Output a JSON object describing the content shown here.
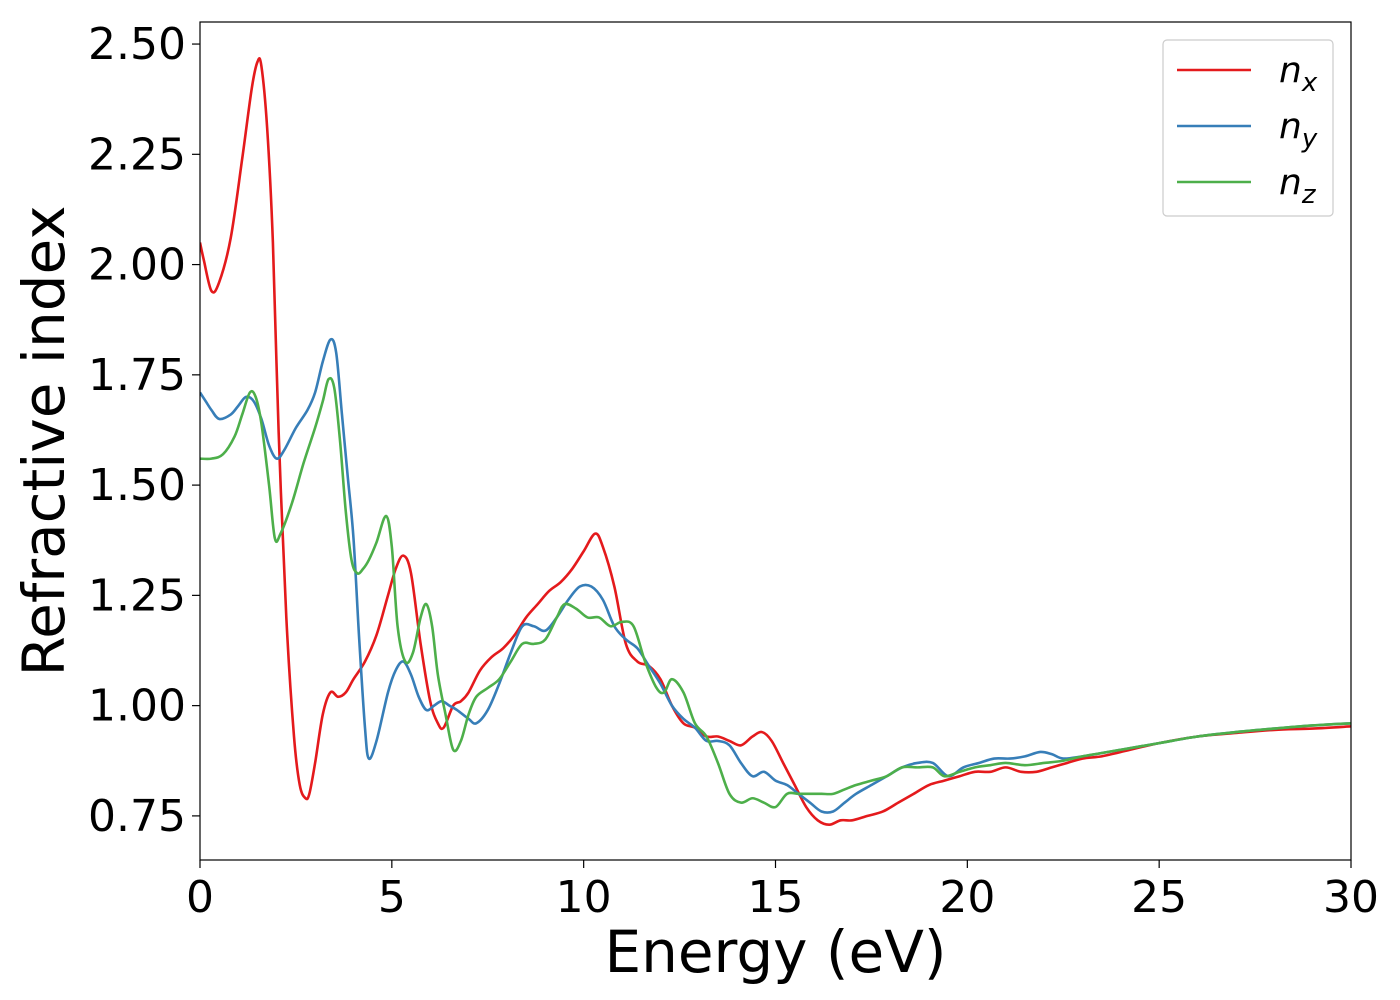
{
  "chart_data": {
    "type": "line",
    "title": "",
    "xlabel": "Energy (eV)",
    "ylabel": "Refractive index",
    "xlim": [
      0,
      30
    ],
    "ylim": [
      0.65,
      2.55
    ],
    "xticks": [
      0,
      5,
      10,
      15,
      20,
      25,
      30
    ],
    "xtick_labels": [
      "0",
      "5",
      "10",
      "15",
      "20",
      "25",
      "30"
    ],
    "yticks": [
      0.75,
      1.0,
      1.25,
      1.5,
      1.75,
      2.0,
      2.25,
      2.5
    ],
    "ytick_labels": [
      "0.75",
      "1.00",
      "1.25",
      "1.50",
      "1.75",
      "2.00",
      "2.25",
      "2.50"
    ],
    "grid": false,
    "legend_position": "top-right",
    "series": [
      {
        "name": "n_x",
        "label_base": "n",
        "label_sub": "x",
        "color": "#e41a1c",
        "x": [
          0,
          0.1,
          0.3,
          0.5,
          0.8,
          1.1,
          1.35,
          1.5,
          1.6,
          1.75,
          1.9,
          2.05,
          2.25,
          2.45,
          2.6,
          2.75,
          2.85,
          3.0,
          3.2,
          3.4,
          3.6,
          3.8,
          4.0,
          4.3,
          4.6,
          4.9,
          5.1,
          5.3,
          5.5,
          5.75,
          6.0,
          6.2,
          6.35,
          6.6,
          6.8,
          7.0,
          7.3,
          7.6,
          7.9,
          8.2,
          8.5,
          8.8,
          9.1,
          9.4,
          9.7,
          10.0,
          10.3,
          10.5,
          10.8,
          11.1,
          11.4,
          11.7,
          12.0,
          12.3,
          12.6,
          12.9,
          13.2,
          13.5,
          13.8,
          14.1,
          14.4,
          14.65,
          14.9,
          15.2,
          15.5,
          15.8,
          16.1,
          16.4,
          16.7,
          17.0,
          17.4,
          17.8,
          18.2,
          18.6,
          19.0,
          19.4,
          19.8,
          20.2,
          20.6,
          21.0,
          21.4,
          21.8,
          22.2,
          22.6,
          23.0,
          23.5,
          24.0,
          25.0,
          26.0,
          27.0,
          28.0,
          29.0,
          30.0
        ],
        "y": [
          2.05,
          2.01,
          1.94,
          1.96,
          2.06,
          2.24,
          2.4,
          2.46,
          2.45,
          2.31,
          2.05,
          1.62,
          1.2,
          0.93,
          0.82,
          0.79,
          0.8,
          0.87,
          0.98,
          1.03,
          1.02,
          1.03,
          1.06,
          1.1,
          1.16,
          1.25,
          1.31,
          1.34,
          1.3,
          1.14,
          1.01,
          0.96,
          0.95,
          1.0,
          1.01,
          1.03,
          1.08,
          1.11,
          1.13,
          1.16,
          1.2,
          1.23,
          1.26,
          1.28,
          1.31,
          1.35,
          1.39,
          1.36,
          1.27,
          1.14,
          1.1,
          1.09,
          1.06,
          1.0,
          0.96,
          0.95,
          0.93,
          0.93,
          0.92,
          0.91,
          0.93,
          0.94,
          0.92,
          0.87,
          0.82,
          0.77,
          0.74,
          0.73,
          0.74,
          0.74,
          0.75,
          0.76,
          0.78,
          0.8,
          0.82,
          0.83,
          0.84,
          0.85,
          0.85,
          0.86,
          0.85,
          0.85,
          0.86,
          0.87,
          0.88,
          0.885,
          0.895,
          0.915,
          0.93,
          0.938,
          0.945,
          0.948,
          0.953
        ]
      },
      {
        "name": "n_y",
        "label_base": "n",
        "label_sub": "y",
        "color": "#377eb8",
        "x": [
          0,
          0.15,
          0.3,
          0.5,
          0.8,
          1.0,
          1.2,
          1.4,
          1.6,
          1.8,
          2.0,
          2.2,
          2.5,
          2.8,
          3.0,
          3.2,
          3.4,
          3.55,
          3.7,
          3.85,
          4.0,
          4.15,
          4.3,
          4.4,
          4.6,
          4.9,
          5.1,
          5.3,
          5.5,
          5.7,
          5.9,
          6.1,
          6.3,
          6.5,
          6.7,
          7.0,
          7.2,
          7.5,
          7.8,
          8.1,
          8.4,
          8.7,
          9.0,
          9.3,
          9.6,
          9.9,
          10.2,
          10.5,
          10.8,
          11.1,
          11.4,
          11.7,
          12.0,
          12.3,
          12.6,
          12.9,
          13.2,
          13.5,
          13.8,
          14.1,
          14.4,
          14.7,
          15.0,
          15.3,
          15.6,
          15.9,
          16.2,
          16.5,
          16.8,
          17.1,
          17.5,
          17.9,
          18.3,
          18.7,
          19.1,
          19.5,
          19.9,
          20.3,
          20.7,
          21.1,
          21.5,
          21.9,
          22.2,
          22.5,
          23.0,
          24.0,
          25.0,
          26.0,
          27.0,
          28.0,
          29.0,
          30.0
        ],
        "y": [
          1.71,
          1.69,
          1.67,
          1.65,
          1.66,
          1.68,
          1.7,
          1.69,
          1.65,
          1.59,
          1.56,
          1.58,
          1.63,
          1.67,
          1.71,
          1.78,
          1.83,
          1.8,
          1.66,
          1.52,
          1.38,
          1.15,
          0.95,
          0.88,
          0.92,
          1.03,
          1.08,
          1.1,
          1.07,
          1.02,
          0.99,
          1.0,
          1.01,
          1.0,
          0.99,
          0.97,
          0.96,
          0.99,
          1.05,
          1.12,
          1.18,
          1.18,
          1.17,
          1.2,
          1.24,
          1.27,
          1.27,
          1.24,
          1.18,
          1.15,
          1.13,
          1.09,
          1.05,
          1.0,
          0.97,
          0.95,
          0.92,
          0.92,
          0.91,
          0.87,
          0.84,
          0.85,
          0.83,
          0.82,
          0.8,
          0.78,
          0.76,
          0.76,
          0.78,
          0.8,
          0.82,
          0.84,
          0.86,
          0.87,
          0.87,
          0.84,
          0.86,
          0.87,
          0.88,
          0.88,
          0.885,
          0.895,
          0.89,
          0.88,
          0.885,
          0.9,
          0.915,
          0.93,
          0.94,
          0.948,
          0.955,
          0.96
        ]
      },
      {
        "name": "n_z",
        "label_base": "n",
        "label_sub": "z",
        "color": "#4daf4a",
        "x": [
          0,
          0.3,
          0.6,
          0.9,
          1.1,
          1.3,
          1.45,
          1.6,
          1.8,
          1.95,
          2.1,
          2.4,
          2.7,
          3.0,
          3.2,
          3.35,
          3.5,
          3.65,
          3.8,
          3.95,
          4.1,
          4.25,
          4.4,
          4.6,
          4.85,
          5.0,
          5.15,
          5.35,
          5.55,
          5.75,
          5.9,
          6.05,
          6.2,
          6.4,
          6.6,
          6.8,
          7.0,
          7.2,
          7.5,
          7.8,
          8.1,
          8.4,
          8.7,
          9.0,
          9.3,
          9.5,
          9.8,
          10.1,
          10.4,
          10.7,
          11.0,
          11.3,
          11.6,
          11.9,
          12.1,
          12.3,
          12.6,
          12.9,
          13.2,
          13.5,
          13.8,
          14.1,
          14.4,
          14.7,
          15.0,
          15.3,
          15.6,
          15.9,
          16.2,
          16.5,
          16.8,
          17.1,
          17.5,
          17.9,
          18.3,
          18.7,
          19.1,
          19.4,
          19.8,
          20.2,
          20.6,
          21.0,
          21.5,
          22.0,
          22.5,
          23.0,
          24.0,
          25.0,
          26.0,
          27.0,
          28.0,
          29.0,
          30.0
        ],
        "y": [
          1.56,
          1.56,
          1.57,
          1.61,
          1.66,
          1.71,
          1.7,
          1.64,
          1.5,
          1.38,
          1.39,
          1.46,
          1.55,
          1.63,
          1.69,
          1.74,
          1.72,
          1.6,
          1.44,
          1.33,
          1.3,
          1.31,
          1.33,
          1.37,
          1.43,
          1.36,
          1.18,
          1.1,
          1.12,
          1.2,
          1.23,
          1.18,
          1.07,
          0.98,
          0.9,
          0.92,
          0.98,
          1.02,
          1.04,
          1.06,
          1.1,
          1.14,
          1.14,
          1.15,
          1.2,
          1.23,
          1.22,
          1.2,
          1.2,
          1.18,
          1.19,
          1.18,
          1.1,
          1.04,
          1.03,
          1.06,
          1.03,
          0.96,
          0.93,
          0.87,
          0.8,
          0.78,
          0.79,
          0.78,
          0.77,
          0.8,
          0.8,
          0.8,
          0.8,
          0.8,
          0.81,
          0.82,
          0.83,
          0.84,
          0.86,
          0.86,
          0.86,
          0.84,
          0.85,
          0.86,
          0.865,
          0.87,
          0.865,
          0.87,
          0.875,
          0.885,
          0.9,
          0.915,
          0.93,
          0.94,
          0.948,
          0.955,
          0.96
        ]
      }
    ]
  }
}
